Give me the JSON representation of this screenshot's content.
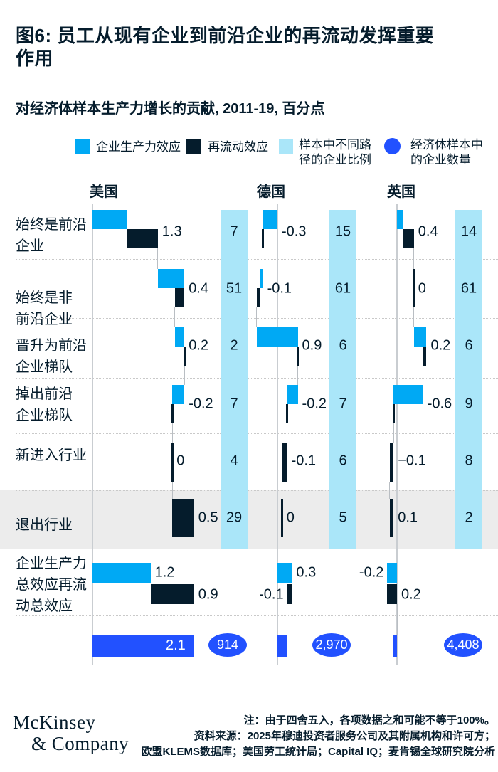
{
  "title_lines": [
    "图6: 员工从现有企业到前沿企业的再流动发挥重要",
    "作用"
  ],
  "subtitle": "对经济体样本生产力增长的贡献, 2011-19, 百分点",
  "legend": {
    "firm_effect": "企业生产力效应",
    "realloc_effect": "再流动效应",
    "share_lines": [
      "样本中不同路",
      "径的企业比例"
    ],
    "count_lines": [
      "经济体样本中",
      "的企业数量"
    ]
  },
  "colors": {
    "cyan": "#00A9F4",
    "navy": "#051C2C",
    "light_cyan": "#AAE6F9",
    "blue": "#2251FF",
    "band_gray": "#ECECEC"
  },
  "row_labels": [
    [
      "始终是前沿",
      "企业"
    ],
    [
      "始终是非",
      "前沿企业"
    ],
    [
      "晋升为前沿",
      "企业梯队"
    ],
    [
      "掉出前沿",
      "企业梯队"
    ],
    [
      "新进入行业"
    ],
    [
      "退出行业"
    ],
    [
      "企业生产力",
      "总效应再流",
      "动总效应"
    ]
  ],
  "chart_data": {
    "type": "waterfall",
    "title": "对经济体样本生产力增长的贡献",
    "period": "2011-19",
    "unit": "百分点",
    "categories": [
      "始终是前沿企业",
      "始终是非前沿企业",
      "晋升为前沿企业梯队",
      "掉出前沿企业梯队",
      "新进入行业",
      "退出行业"
    ],
    "series_names": [
      "企业生产力效应",
      "再流动效应",
      "样本中不同路径的企业比例",
      "经济体样本中的企业数量"
    ],
    "countries": [
      {
        "key": "us",
        "name": "美国",
        "rows": [
          {
            "label": "1.3",
            "firm": 0.7,
            "realloc": 0.65,
            "share": "7"
          },
          {
            "label": "0.4",
            "firm": 0.55,
            "realloc": -0.2,
            "share": "51"
          },
          {
            "label": "0.2",
            "firm": 0.2,
            "realloc": 0,
            "share": "2"
          },
          {
            "label": "-0.2",
            "firm": -0.25,
            "realloc": 0,
            "share": "7"
          },
          {
            "label": "0",
            "firm": 0,
            "realloc": 0,
            "share": "4"
          },
          {
            "label": "0.5",
            "firm": 0,
            "realloc": 0.45,
            "share": "29"
          }
        ],
        "firm_total": {
          "label": "1.2",
          "value": 1.2,
          "side": "right"
        },
        "realloc_total": {
          "label": "0.9",
          "value": 0.9,
          "side": "right"
        },
        "total": {
          "label": "2.1",
          "value": 2.1
        },
        "count": "914"
      },
      {
        "key": "de",
        "name": "德国",
        "rows": [
          {
            "label": "-0.3",
            "firm": -0.3,
            "realloc": 0,
            "share": "15"
          },
          {
            "label": "-0.1",
            "firm": -0.05,
            "realloc": -0.08,
            "share": "61"
          },
          {
            "label": "0.9",
            "firm": 0.85,
            "realloc": 0,
            "share": "6"
          },
          {
            "label": "-0.2",
            "firm": -0.22,
            "realloc": 0,
            "share": "7"
          },
          {
            "label": "-0.1",
            "firm": 0,
            "realloc": -0.1,
            "share": "6"
          },
          {
            "label": "0",
            "firm": 0,
            "realloc": 0,
            "share": "5"
          }
        ],
        "firm_total": {
          "label": "0.3",
          "value": 0.3,
          "side": "right"
        },
        "realloc_total": {
          "label": "-0.1",
          "value": -0.1,
          "side": "left"
        },
        "total": {
          "label": "",
          "value": 0.2
        },
        "count": "2,970"
      },
      {
        "key": "uk",
        "name": "英国",
        "rows": [
          {
            "label": "0.4",
            "firm": 0.13,
            "realloc": 0.22,
            "share": "14"
          },
          {
            "label": "0",
            "firm": 0,
            "realloc": 0,
            "share": "61"
          },
          {
            "label": "0.2",
            "firm": 0.26,
            "realloc": -0.07,
            "share": "6"
          },
          {
            "label": "-0.6",
            "firm": -0.61,
            "realloc": 0,
            "share": "9"
          },
          {
            "label": "−0.1",
            "firm": 0,
            "realloc": -0.08,
            "share": "8"
          },
          {
            "label": "0.1",
            "firm": 0,
            "realloc": 0.08,
            "share": "2"
          }
        ],
        "firm_total": {
          "label": "-0.2",
          "value": -0.2,
          "side": "left"
        },
        "realloc_total": {
          "label": "0.2",
          "value": 0.2,
          "side": "right"
        },
        "total": {
          "label": "",
          "value": -0.07
        },
        "count": "4,408"
      }
    ]
  },
  "footer": {
    "logo_line1": "McKinsey",
    "logo_line2": "& Company",
    "note": "注：由于四舍五入，各项数据之和可能不等于100%。",
    "source_line1": "资料来源：2025年穆迪投资者服务公司及其附属机构和许可方；",
    "source_line2": "欧盟KLEMS数据库；美国劳工统计局；Capital IQ；麦肯锡全球研究院分析"
  }
}
